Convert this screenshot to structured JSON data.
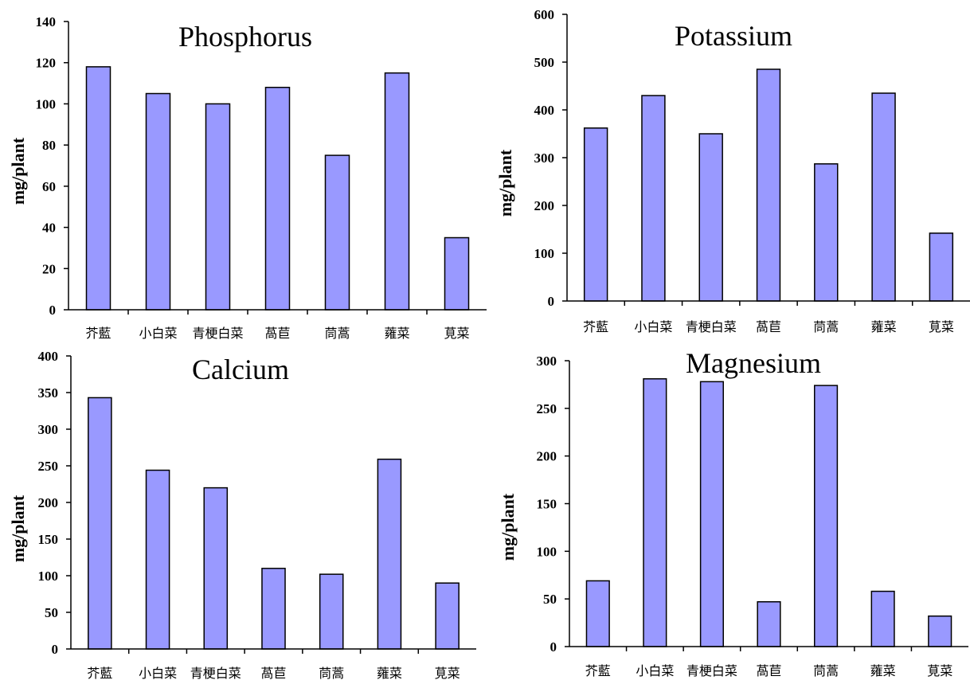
{
  "chart_data": [
    {
      "type": "bar",
      "title": "Phosphorus",
      "ylabel": "mg/plant",
      "xlabel": "",
      "categories": [
        "芥藍",
        "小白菜",
        "青梗白菜",
        "萵苣",
        "茼蒿",
        "蕹菜",
        "莧菜"
      ],
      "values": [
        118,
        105,
        100,
        108,
        75,
        115,
        35
      ],
      "ylim": [
        0,
        140
      ],
      "yticks": [
        0,
        20,
        40,
        60,
        80,
        100,
        120,
        140
      ],
      "bar_color": "#9999FF",
      "grid": false,
      "legend": "none"
    },
    {
      "type": "bar",
      "title": "Potassium",
      "ylabel": "mg/plant",
      "xlabel": "",
      "categories": [
        "芥藍",
        "小白菜",
        "青梗白菜",
        "萵苣",
        "茼蒿",
        "蕹菜",
        "莧菜"
      ],
      "values": [
        362,
        430,
        350,
        485,
        287,
        435,
        142
      ],
      "ylim": [
        0,
        600
      ],
      "yticks": [
        0,
        100,
        200,
        300,
        400,
        500,
        600
      ],
      "bar_color": "#9999FF",
      "grid": false,
      "legend": "none"
    },
    {
      "type": "bar",
      "title": "Calcium",
      "ylabel": "mg/plant",
      "xlabel": "",
      "categories": [
        "芥藍",
        "小白菜",
        "青梗白菜",
        "萵苣",
        "茼蒿",
        "蕹菜",
        "莧菜"
      ],
      "values": [
        343,
        244,
        220,
        110,
        102,
        259,
        90
      ],
      "ylim": [
        0,
        400
      ],
      "yticks": [
        0,
        50,
        100,
        150,
        200,
        250,
        300,
        350,
        400
      ],
      "bar_color": "#9999FF",
      "grid": false,
      "legend": "none"
    },
    {
      "type": "bar",
      "title": "Magnesium",
      "ylabel": "mg/plant",
      "xlabel": "",
      "categories": [
        "芥藍",
        "小白菜",
        "青梗白菜",
        "萵苣",
        "茼蒿",
        "蕹菜",
        "莧菜"
      ],
      "values": [
        69,
        281,
        278,
        47,
        274,
        58,
        32
      ],
      "ylim": [
        0,
        300
      ],
      "yticks": [
        0,
        50,
        100,
        150,
        200,
        250,
        300
      ],
      "bar_color": "#9999FF",
      "grid": false,
      "legend": "none"
    }
  ]
}
